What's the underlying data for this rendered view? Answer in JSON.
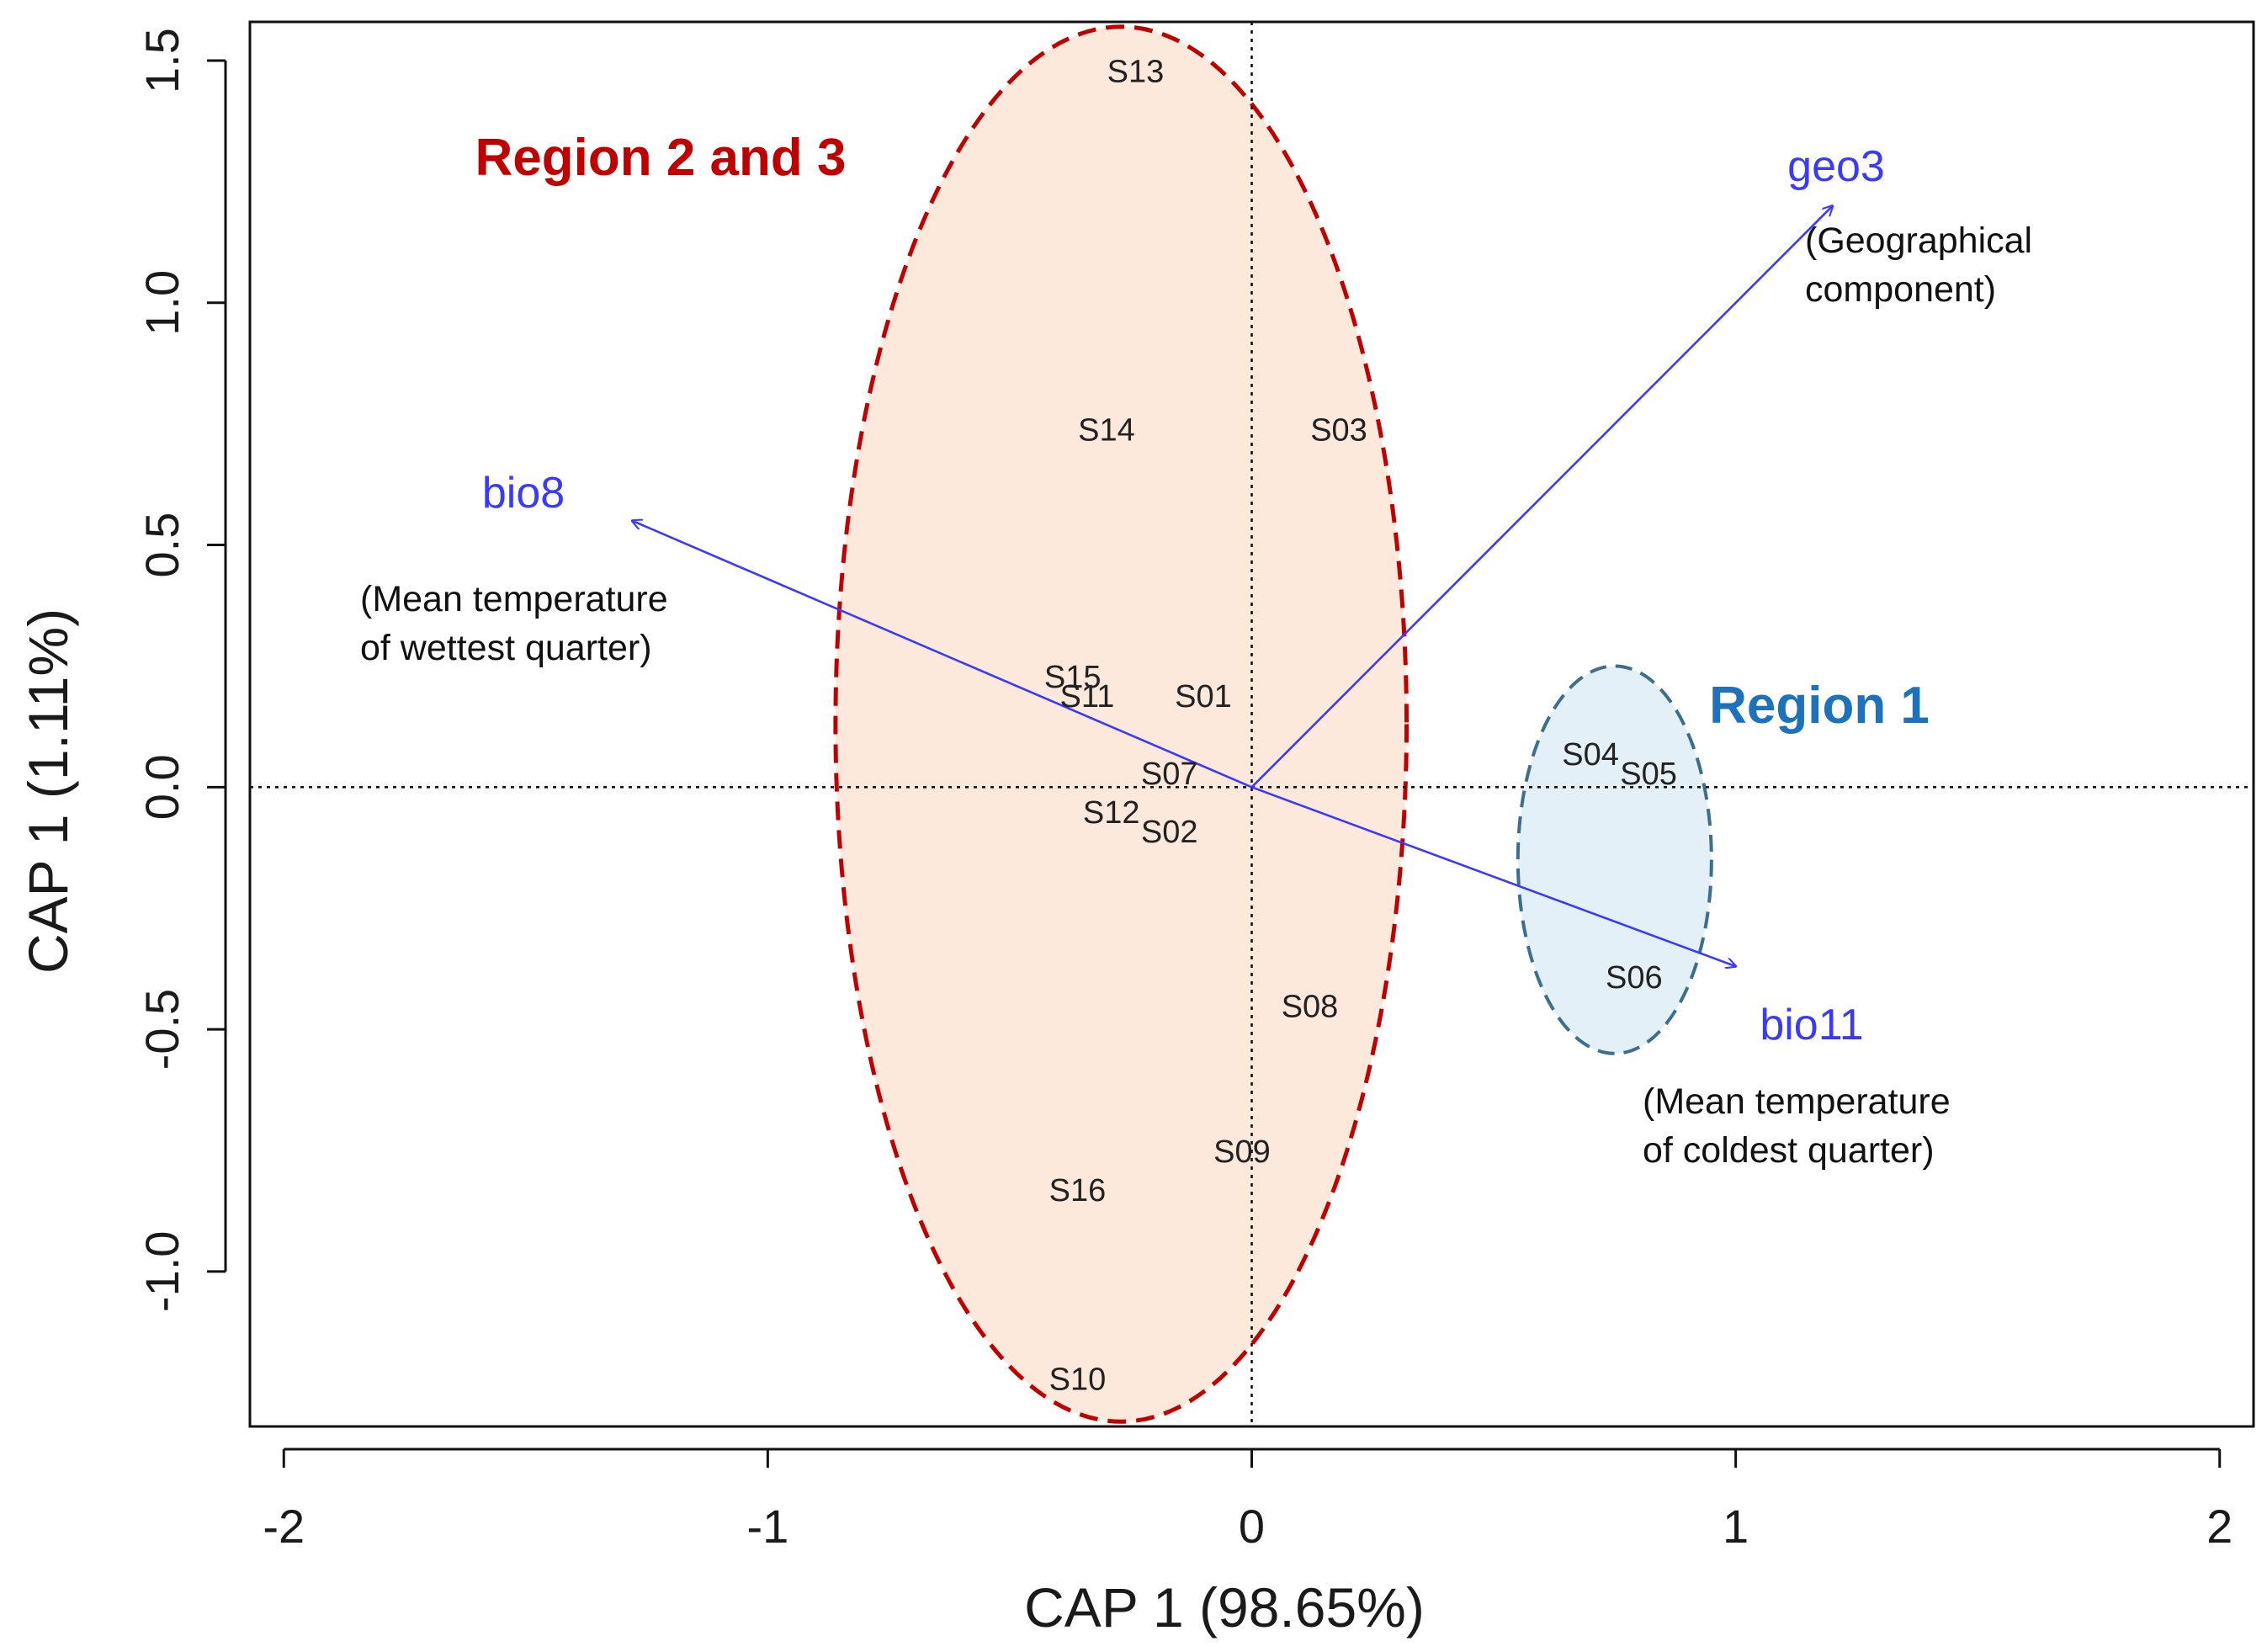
{
  "chart_data": {
    "type": "scatter",
    "subtype": "CAP biplot",
    "xlabel": "CAP 1 (98.65%)",
    "ylabel": "CAP 1 (1.11%)",
    "xlim": [
      -2.07,
      2.07
    ],
    "ylim": [
      -1.32,
      1.58
    ],
    "x_ticks": [
      -2,
      -1,
      0,
      1,
      2
    ],
    "x_tick_labels": [
      "-2",
      "-1",
      "0",
      "1",
      "2"
    ],
    "y_ticks": [
      -1.0,
      -0.5,
      0.0,
      0.5,
      1.0,
      1.5
    ],
    "y_tick_labels": [
      "-1.0",
      "-0.5",
      "0.0",
      "0.5",
      "1.0",
      "1.5"
    ],
    "reference_lines": {
      "x": 0,
      "y": 0,
      "style": "dotted"
    },
    "sites": [
      {
        "label": "S13",
        "x": -0.24,
        "y": 1.48
      },
      {
        "label": "S14",
        "x": -0.3,
        "y": 0.74
      },
      {
        "label": "S03",
        "x": 0.18,
        "y": 0.74
      },
      {
        "label": "S15",
        "x": -0.37,
        "y": 0.23
      },
      {
        "label": "S11",
        "x": -0.34,
        "y": 0.19
      },
      {
        "label": "S01",
        "x": -0.1,
        "y": 0.19
      },
      {
        "label": "S07",
        "x": -0.17,
        "y": 0.03
      },
      {
        "label": "S12",
        "x": -0.29,
        "y": -0.05
      },
      {
        "label": "S02",
        "x": -0.17,
        "y": -0.09
      },
      {
        "label": "S08",
        "x": 0.12,
        "y": -0.45
      },
      {
        "label": "S09",
        "x": -0.02,
        "y": -0.75
      },
      {
        "label": "S16",
        "x": -0.36,
        "y": -0.83
      },
      {
        "label": "S10",
        "x": -0.36,
        "y": -1.22
      },
      {
        "label": "S04",
        "x": 0.7,
        "y": 0.07
      },
      {
        "label": "S05",
        "x": 0.82,
        "y": 0.03
      },
      {
        "label": "S06",
        "x": 0.79,
        "y": -0.39
      }
    ],
    "vectors": [
      {
        "name": "geo3",
        "description_lines": [
          "(Geographical",
          "component)"
        ],
        "x": 1.2,
        "y": 1.2,
        "color": "#3a3aff"
      },
      {
        "name": "bio8",
        "description_lines": [
          "(Mean temperature",
          "of wettest quarter)"
        ],
        "x": -1.28,
        "y": 0.55,
        "color": "#3a3aff"
      },
      {
        "name": "bio11",
        "description_lines": [
          "(Mean temperature",
          "of coldest quarter)"
        ],
        "x": 1.0,
        "y": -0.37,
        "color": "#3a3aff"
      }
    ],
    "groups": [
      {
        "label": "Region 2 and 3",
        "center": [
          -0.27,
          0.13
        ],
        "radius_x": 0.59,
        "radius_y": 1.44,
        "fill": "#fde8dc",
        "stroke": "#c00000"
      },
      {
        "label": "Region 1",
        "center": [
          0.75,
          -0.15
        ],
        "radius_x": 0.2,
        "radius_y": 0.4,
        "fill": "#e4f0f8",
        "stroke": "#3d6e8e",
        "label_color": "#1d72be"
      }
    ]
  }
}
